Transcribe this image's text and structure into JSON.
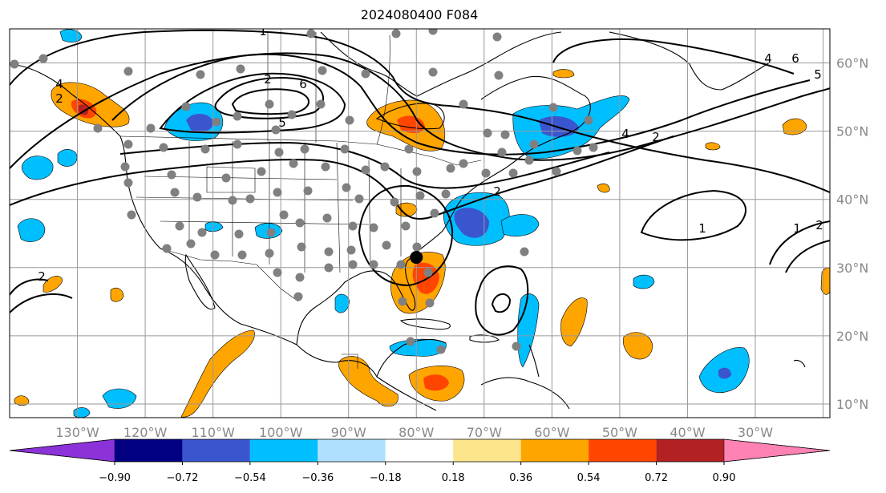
{
  "title": "2024080400 F084",
  "map": {
    "lon_min": -140,
    "lon_max": -19,
    "lat_min": 8,
    "lat_max": 65,
    "grid_lons": [
      -130,
      -120,
      -110,
      -100,
      -90,
      -80,
      -70,
      -60,
      -50,
      -40,
      -30,
      -20
    ],
    "grid_lats": [
      10,
      20,
      30,
      40,
      50,
      60
    ],
    "lon_labels": [
      "130°W",
      "120°W",
      "110°W",
      "100°W",
      "90°W",
      "80°W",
      "70°W",
      "60°W",
      "50°W",
      "40°W",
      "30°W"
    ],
    "lat_labels": [
      "10°N",
      "20°N",
      "30°N",
      "40°N",
      "50°N",
      "60°N"
    ],
    "colors": {
      "neg_090": "#8b32d8",
      "neg_072": "#000080",
      "neg_054": "#3a56cf",
      "neg_036": "#00bfff",
      "neg_018": "#b0e0ff",
      "zero": "#ffffff",
      "pos_018": "#fce58a",
      "pos_036": "#ffa500",
      "pos_054": "#ff4500",
      "pos_072": "#b22222",
      "pos_090": "#ff82b4",
      "grid": "#999999",
      "coast": "#000000",
      "station": "#808080"
    }
  },
  "colorbar": {
    "labels": [
      "−0.90",
      "−0.72",
      "−0.54",
      "−0.36",
      "−0.18",
      "0.18",
      "0.36",
      "0.54",
      "0.72",
      "0.90"
    ]
  },
  "contour_labels": [
    "1",
    "2",
    "4",
    "5",
    "6",
    "4",
    "6",
    "5",
    "4",
    "2",
    "1",
    "1",
    "2",
    "2",
    "2",
    "2"
  ],
  "marker": {
    "lon": -80,
    "lat": 31.5
  }
}
